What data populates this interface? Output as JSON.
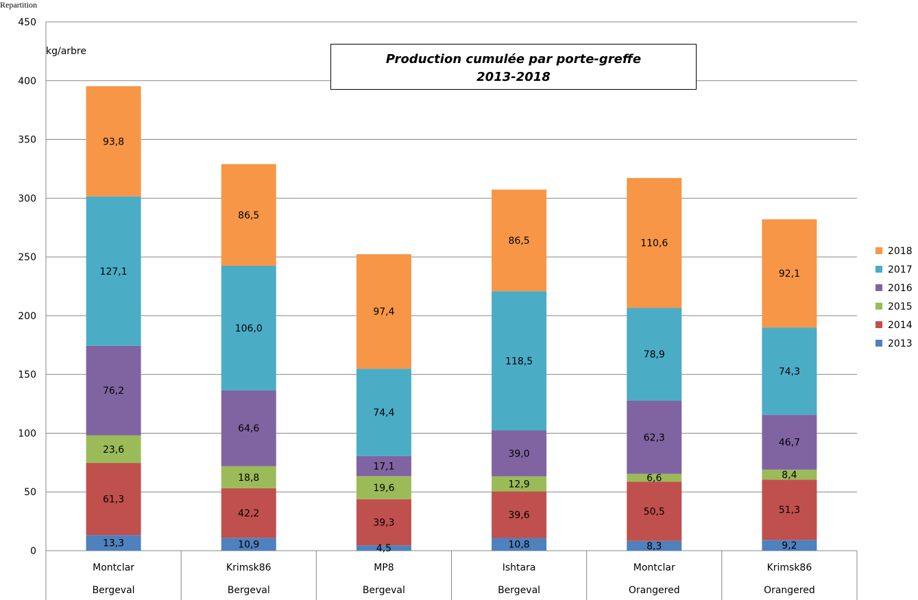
{
  "chart_data": {
    "type": "bar",
    "stacked": true,
    "title_lines": [
      "Production  cumulée  par  porte-greffe",
      "2013-2018"
    ],
    "corner_label": "Repartition",
    "ylabel": "kg/arbre",
    "ylim": [
      0,
      450
    ],
    "yticks": [
      0,
      50,
      100,
      150,
      200,
      250,
      300,
      350,
      400,
      450
    ],
    "grid": true,
    "legend_position": "right",
    "categories": [
      {
        "line1": "Montclar",
        "line2": "Bergeval"
      },
      {
        "line1": "Krimsk86",
        "line2": "Bergeval"
      },
      {
        "line1": "MP8",
        "line2": "Bergeval"
      },
      {
        "line1": "Ishtara",
        "line2": "Bergeval"
      },
      {
        "line1": "Montclar",
        "line2": "Orangered"
      },
      {
        "line1": "Krimsk86",
        "line2": "Orangered"
      }
    ],
    "series": [
      {
        "name": "2013",
        "color": "#4f81bd",
        "values": [
          13.3,
          10.9,
          4.5,
          10.8,
          8.3,
          9.2
        ],
        "labels": [
          "13,3",
          "10,9",
          "4,5",
          "10,8",
          "8,3",
          "9,2"
        ]
      },
      {
        "name": "2014",
        "color": "#c0504d",
        "values": [
          61.3,
          42.2,
          39.3,
          39.6,
          50.5,
          51.3
        ],
        "labels": [
          "61,3",
          "42,2",
          "39,3",
          "39,6",
          "50,5",
          "51,3"
        ]
      },
      {
        "name": "2015",
        "color": "#9bbb59",
        "values": [
          23.6,
          18.8,
          19.6,
          12.9,
          6.6,
          8.4
        ],
        "labels": [
          "23,6",
          "18,8",
          "19,6",
          "12,9",
          "6,6",
          "8,4"
        ]
      },
      {
        "name": "2016",
        "color": "#8064a2",
        "values": [
          76.2,
          64.6,
          17.1,
          39.0,
          62.3,
          46.7
        ],
        "labels": [
          "76,2",
          "64,6",
          "17,1",
          "39,0",
          "62,3",
          "46,7"
        ]
      },
      {
        "name": "2017",
        "color": "#4bacc6",
        "values": [
          127.1,
          106.0,
          74.4,
          118.5,
          78.9,
          74.3
        ],
        "labels": [
          "127,1",
          "106,0",
          "74,4",
          "118,5",
          "78,9",
          "74,3"
        ]
      },
      {
        "name": "2018",
        "color": "#f79646",
        "values": [
          93.8,
          86.5,
          97.4,
          86.5,
          110.6,
          92.1
        ],
        "labels": [
          "93,8",
          "86,5",
          "97,4",
          "86,5",
          "110,6",
          "92,1"
        ]
      }
    ]
  }
}
